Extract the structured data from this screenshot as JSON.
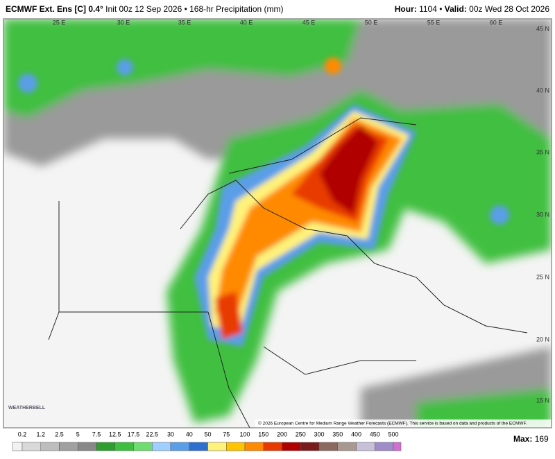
{
  "header": {
    "left_bold": "ECMWF Ext. Ens [C] 0.4°",
    "left_rest": "Init 00z 12 Sep 2026 • 168-hr Precipitation (mm)",
    "hour_label": "Hour:",
    "hour": 1104,
    "valid_label": "Valid:",
    "valid": "00z Wed 28 Oct 2026"
  },
  "map": {
    "lon_labels": [
      "25 E",
      "30 E",
      "35 E",
      "40 E",
      "45 E",
      "50 E",
      "55 E",
      "60 E"
    ],
    "lat_labels": [
      "45 N",
      "40 N",
      "35 N",
      "30 N",
      "25 N",
      "20 N",
      "15 N"
    ],
    "logo": "WEATHERBELL",
    "credit": "© 2026 European Centre for Medium Range Weather Forecasts (ECMWF). This service is based on data and products of the ECMWF."
  },
  "colorbar": {
    "ticks": [
      0.2,
      1.2,
      2.5,
      5,
      7.5,
      12.5,
      17.5,
      22.5,
      30,
      40,
      50,
      75,
      100,
      150,
      200,
      250,
      300,
      350,
      400,
      450,
      500
    ],
    "colors": [
      "#f2f2f2",
      "#d9d9d9",
      "#bdbdbd",
      "#a0a0a0",
      "#888888",
      "#2e9e2e",
      "#3fbf3f",
      "#6fdc6f",
      "#9ecfff",
      "#5a9ee8",
      "#2f6fd0",
      "#fff27a",
      "#ffc400",
      "#ff8a00",
      "#e83a00",
      "#b00000",
      "#7a1a1a",
      "#8c6a60",
      "#a89890",
      "#c8c0d8",
      "#a08cc8",
      "#d070d0"
    ],
    "max_label": "Max:",
    "max": 169
  }
}
